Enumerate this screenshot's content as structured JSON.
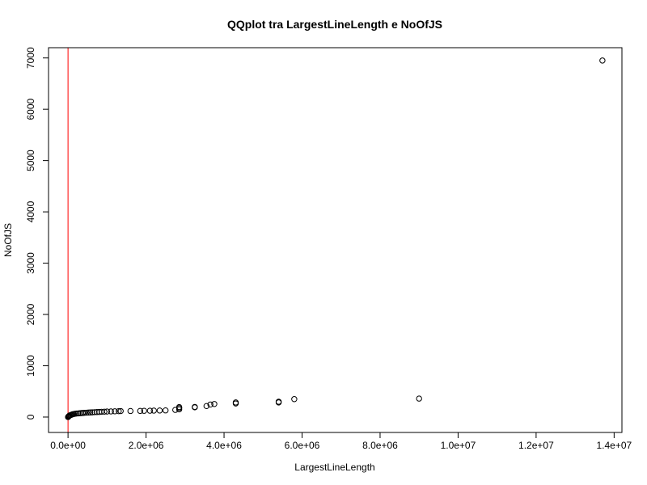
{
  "chart_data": {
    "type": "scatter",
    "title": "QQplot tra LargestLineLength e NoOfJS",
    "xlabel": "LargestLineLength",
    "ylabel": "NoOfJS",
    "xlim": [
      -500000,
      14200000
    ],
    "ylim": [
      -300,
      7200
    ],
    "x_ticks": [
      0,
      2000000,
      4000000,
      6000000,
      8000000,
      10000000,
      12000000,
      14000000
    ],
    "x_tick_labels": [
      "0.0e+00",
      "2.0e+06",
      "4.0e+06",
      "6.0e+06",
      "8.0e+06",
      "1.0e+07",
      "1.2e+07",
      "1.4e+07"
    ],
    "y_ticks": [
      0,
      1000,
      2000,
      3000,
      4000,
      5000,
      6000,
      7000
    ],
    "y_tick_labels": [
      "0",
      "1000",
      "2000",
      "3000",
      "4000",
      "5000",
      "6000",
      "7000"
    ],
    "reference_line": {
      "type": "vertical",
      "x": 0,
      "color": "#ff0000"
    },
    "points": [
      {
        "x": 0,
        "y": 0
      },
      {
        "x": 5000,
        "y": 5
      },
      {
        "x": 10000,
        "y": 10
      },
      {
        "x": 20000,
        "y": 18
      },
      {
        "x": 30000,
        "y": 25
      },
      {
        "x": 40000,
        "y": 30
      },
      {
        "x": 60000,
        "y": 38
      },
      {
        "x": 80000,
        "y": 42
      },
      {
        "x": 100000,
        "y": 50
      },
      {
        "x": 120000,
        "y": 55
      },
      {
        "x": 150000,
        "y": 60
      },
      {
        "x": 180000,
        "y": 65
      },
      {
        "x": 220000,
        "y": 70
      },
      {
        "x": 260000,
        "y": 72
      },
      {
        "x": 300000,
        "y": 75
      },
      {
        "x": 340000,
        "y": 78
      },
      {
        "x": 380000,
        "y": 80
      },
      {
        "x": 420000,
        "y": 83
      },
      {
        "x": 470000,
        "y": 85
      },
      {
        "x": 520000,
        "y": 88
      },
      {
        "x": 570000,
        "y": 90
      },
      {
        "x": 620000,
        "y": 92
      },
      {
        "x": 680000,
        "y": 95
      },
      {
        "x": 740000,
        "y": 98
      },
      {
        "x": 800000,
        "y": 100
      },
      {
        "x": 860000,
        "y": 103
      },
      {
        "x": 930000,
        "y": 105
      },
      {
        "x": 1000000,
        "y": 108
      },
      {
        "x": 1100000,
        "y": 110
      },
      {
        "x": 1200000,
        "y": 112
      },
      {
        "x": 1300000,
        "y": 115
      },
      {
        "x": 1350000,
        "y": 117
      },
      {
        "x": 1600000,
        "y": 118
      },
      {
        "x": 1850000,
        "y": 120
      },
      {
        "x": 1950000,
        "y": 122
      },
      {
        "x": 2100000,
        "y": 124
      },
      {
        "x": 2200000,
        "y": 126
      },
      {
        "x": 2350000,
        "y": 128
      },
      {
        "x": 2500000,
        "y": 130
      },
      {
        "x": 2750000,
        "y": 140
      },
      {
        "x": 2850000,
        "y": 150
      },
      {
        "x": 2850000,
        "y": 175
      },
      {
        "x": 2850000,
        "y": 195
      },
      {
        "x": 3250000,
        "y": 190
      },
      {
        "x": 3250000,
        "y": 198
      },
      {
        "x": 3550000,
        "y": 215
      },
      {
        "x": 3650000,
        "y": 245
      },
      {
        "x": 3750000,
        "y": 255
      },
      {
        "x": 4300000,
        "y": 265
      },
      {
        "x": 4300000,
        "y": 285
      },
      {
        "x": 5400000,
        "y": 285
      },
      {
        "x": 5400000,
        "y": 300
      },
      {
        "x": 5800000,
        "y": 350
      },
      {
        "x": 9000000,
        "y": 360
      },
      {
        "x": 13700000,
        "y": 6950
      }
    ]
  }
}
